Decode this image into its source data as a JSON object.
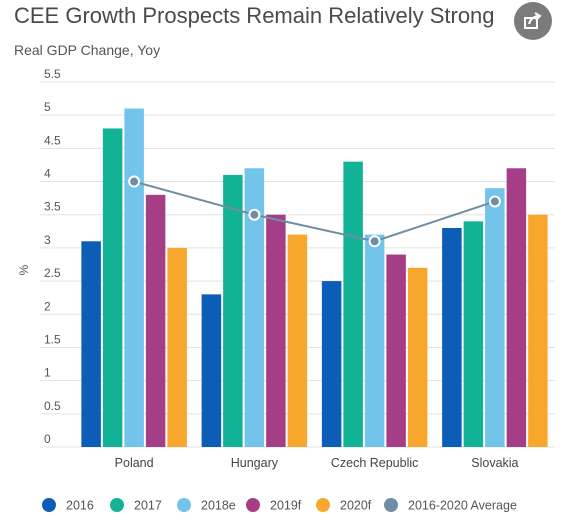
{
  "title": "CEE Growth Prospects Remain Relatively Strong",
  "subtitle": "Real GDP Change, Yoy",
  "share_icon": "share-icon",
  "chart_data": {
    "type": "bar",
    "ylabel": "%",
    "ylim": [
      0,
      5.5
    ],
    "yticks": [
      "0",
      "0.5",
      "1",
      "1.5",
      "2",
      "2.5",
      "3",
      "3.5",
      "4",
      "4.5",
      "5",
      "5.5"
    ],
    "grid": true,
    "legend_position": "bottom",
    "categories": [
      "Poland",
      "Hungary",
      "Czech Republic",
      "Slovakia"
    ],
    "series": [
      {
        "name": "2016",
        "color": "#0b5db5",
        "values": [
          3.1,
          2.3,
          2.5,
          3.3
        ]
      },
      {
        "name": "2017",
        "color": "#12b296",
        "values": [
          4.8,
          4.1,
          4.3,
          3.4
        ]
      },
      {
        "name": "2018e",
        "color": "#72c4ea",
        "values": [
          5.1,
          4.2,
          3.2,
          3.9
        ]
      },
      {
        "name": "2019f",
        "color": "#a53e87",
        "values": [
          3.8,
          3.5,
          2.9,
          4.2
        ]
      },
      {
        "name": "2020f",
        "color": "#f9a72c",
        "values": [
          3.0,
          3.2,
          2.7,
          3.5
        ]
      }
    ],
    "line_series": {
      "name": "2016-2020 Average",
      "color": "#708ea3",
      "values": [
        4.0,
        3.5,
        3.1,
        3.7
      ]
    }
  }
}
